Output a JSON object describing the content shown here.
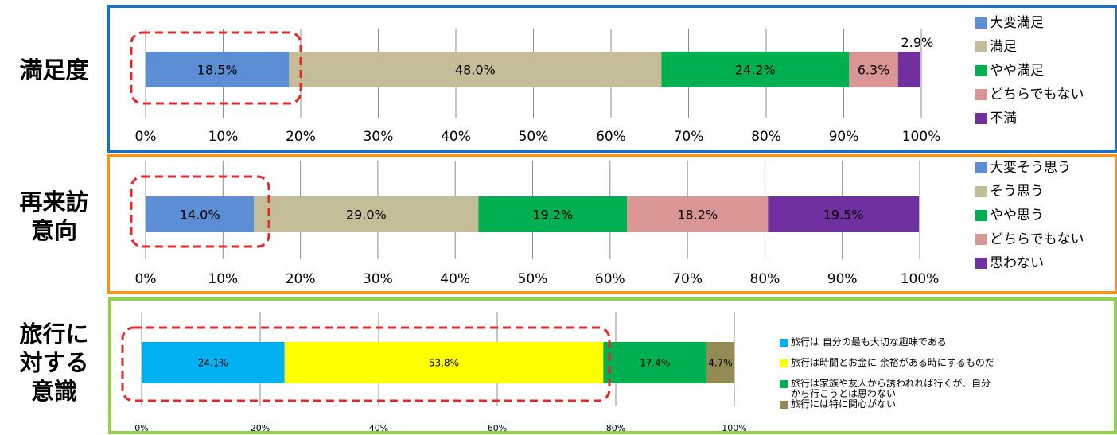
{
  "sections": [
    {
      "label_lines": [
        "満足度"
      ]
    },
    {
      "label_lines": [
        "再来訪",
        "意向"
      ]
    },
    {
      "label_lines": [
        "旅行に",
        "対する",
        "意識"
      ]
    }
  ],
  "colors": {
    "frame_blue": "#1F6FBF",
    "frame_orange": "#F7941D",
    "frame_green": "#92D050",
    "highlight_red": "#E8262A",
    "gridline": "#8C8C8C"
  },
  "chart_data": [
    {
      "type": "bar",
      "orientation": "horizontal",
      "stacked": true,
      "xlim": [
        0,
        100
      ],
      "tick_labels": [
        "0%",
        "10%",
        "20%",
        "30%",
        "40%",
        "50%",
        "60%",
        "70%",
        "80%",
        "90%",
        "100%"
      ],
      "series": [
        {
          "name": "大変満足",
          "value": 18.5,
          "label": "18.5%",
          "color": "#5B8ED4"
        },
        {
          "name": "満足",
          "value": 48.0,
          "label": "48.0%",
          "color": "#C4BD97"
        },
        {
          "name": "やや満足",
          "value": 24.2,
          "label": "24.2%",
          "color": "#00B050"
        },
        {
          "name": "どちらでもない",
          "value": 6.3,
          "label": "6.3%",
          "color": "#D99694"
        },
        {
          "name": "不満",
          "value": 2.9,
          "label": "2.9%",
          "color": "#7030A0"
        }
      ],
      "highlighted_series": 0,
      "legend": "right"
    },
    {
      "type": "bar",
      "orientation": "horizontal",
      "stacked": true,
      "xlim": [
        0,
        100
      ],
      "tick_labels": [
        "0%",
        "10%",
        "20%",
        "30%",
        "40%",
        "50%",
        "60%",
        "70%",
        "80%",
        "90%",
        "100%"
      ],
      "series": [
        {
          "name": "大変そう思う",
          "value": 14.0,
          "label": "14.0%",
          "color": "#5B8ED4"
        },
        {
          "name": "そう思う",
          "value": 29.0,
          "label": "29.0%",
          "color": "#C4BD97"
        },
        {
          "name": "やや思う",
          "value": 19.2,
          "label": "19.2%",
          "color": "#00B050"
        },
        {
          "name": "どちらでもない",
          "value": 18.2,
          "label": "18.2%",
          "color": "#D99694"
        },
        {
          "name": "思わない",
          "value": 19.5,
          "label": "19.5%",
          "color": "#7030A0"
        }
      ],
      "highlighted_series": 0,
      "legend": "right"
    },
    {
      "type": "bar",
      "orientation": "horizontal",
      "stacked": true,
      "xlim": [
        0,
        100
      ],
      "tick_labels": [
        "0%",
        "20%",
        "40%",
        "60%",
        "80%",
        "100%"
      ],
      "series": [
        {
          "name": "旅行は 自分の最も大切な趣味である",
          "value": 24.1,
          "label": "24.1%",
          "color": "#00B0F0"
        },
        {
          "name": "旅行は時間とお金に 余裕がある時にするものだ",
          "value": 53.8,
          "label": "53.8%",
          "color": "#FFFF00"
        },
        {
          "name": "旅行は家族や友人から誘われれば行くが、自分から行こうとは思わない",
          "value": 17.4,
          "label": "17.4%",
          "color": "#00B050"
        },
        {
          "name": "旅行には特に関心がない",
          "value": 4.7,
          "label": "4.7%",
          "color": "#948A54"
        }
      ],
      "highlighted_series": [
        0,
        1
      ],
      "legend": "right"
    }
  ]
}
